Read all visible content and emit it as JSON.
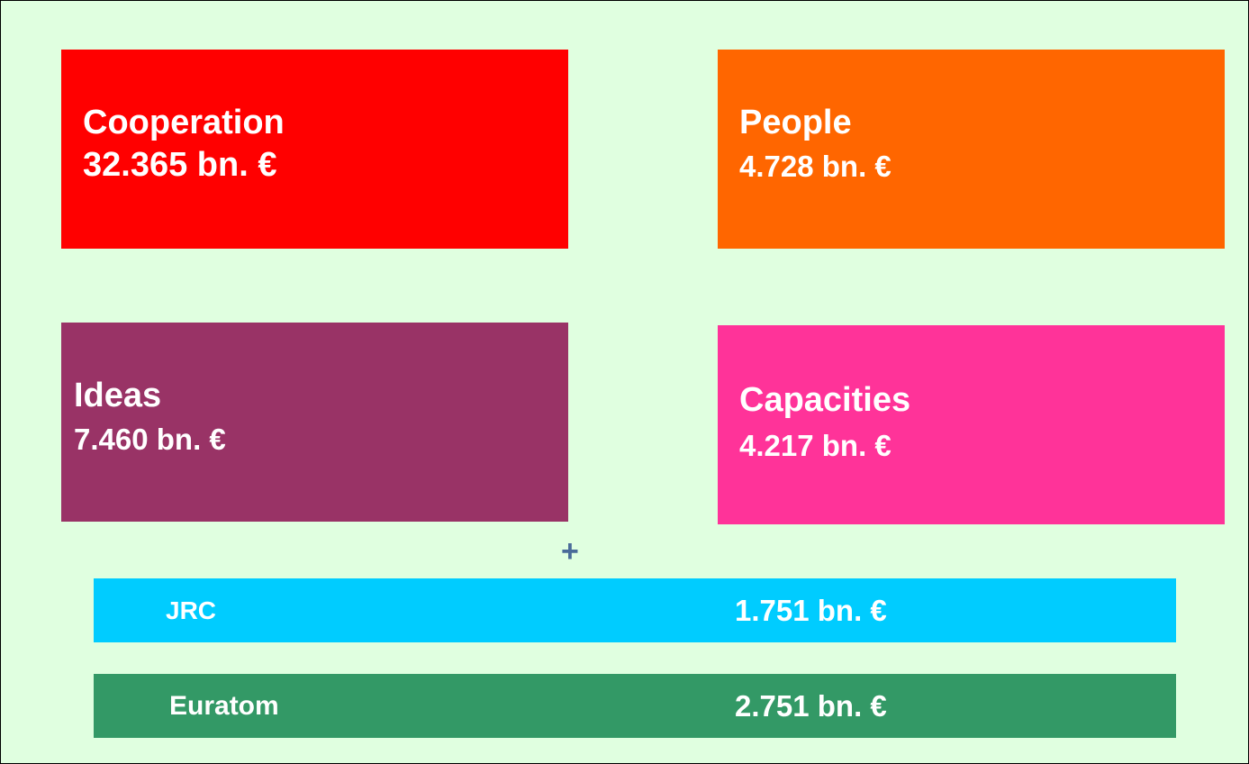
{
  "boxes": [
    {
      "name": "Cooperation",
      "amount": "32.365 bn. €"
    },
    {
      "name": "People",
      "amount": "4.728 bn. €"
    },
    {
      "name": "Ideas",
      "amount": "7.460 bn. €"
    },
    {
      "name": "Capacities",
      "amount": "4.217 bn. €"
    }
  ],
  "plus": "+",
  "bars": [
    {
      "name": "JRC",
      "amount": "1.751 bn. €"
    },
    {
      "name": "Euratom",
      "amount": "2.751 bn. €"
    }
  ]
}
